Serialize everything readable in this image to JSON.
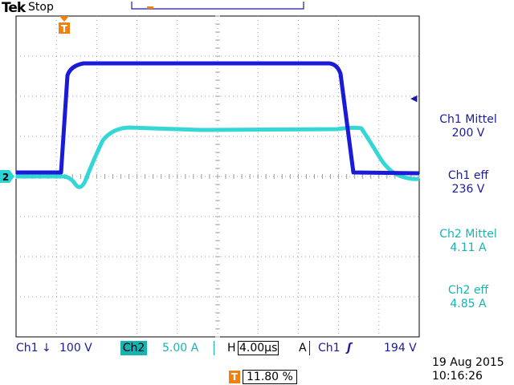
{
  "header": {
    "brand": "Tek",
    "run_state": "Stop"
  },
  "markers": {
    "trigger_glyph": "T",
    "ch2_ground_label": "2",
    "ch1_ground_arrow": "◀"
  },
  "colors": {
    "ch1": "#1a1ad8",
    "ch2": "#2ad4d4",
    "grid": "#a0a0a0",
    "trigger": "#f08010",
    "text_ch1": "#1a1a9e",
    "text_ch2": "#17b3b3"
  },
  "measurements": [
    {
      "label": "Ch1 Mittel",
      "value": "200 V",
      "channel": "ch1"
    },
    {
      "label": "Ch1 eff",
      "value": "236 V",
      "channel": "ch1"
    },
    {
      "label": "Ch2 Mittel",
      "value": "4.11 A",
      "channel": "ch2"
    },
    {
      "label": "Ch2 eff",
      "value": "4.85 A",
      "channel": "ch2"
    }
  ],
  "status": {
    "ch1_label": "Ch1",
    "ch1_coupling": "↓",
    "ch1_scale": "100 V",
    "ch2_label": "Ch2",
    "ch2_scale": "5.00 A",
    "h_label": "H",
    "h_scale": "4.00µs",
    "acq_label": "A",
    "trig_source": "Ch1",
    "trig_slope": "ʃ",
    "trig_level": "194 V"
  },
  "timestamp": {
    "date": "19 Aug 2015",
    "time": "10:16:26"
  },
  "trigger_position": {
    "value": "11.80 %"
  }
}
